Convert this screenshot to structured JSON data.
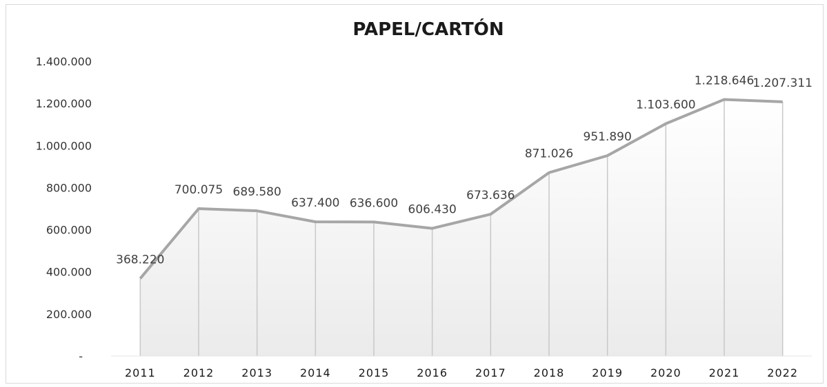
{
  "chart_data": {
    "type": "area",
    "title": "PAPEL/CARTÓN",
    "xlabel": "",
    "ylabel": "",
    "categories": [
      "2011",
      "2012",
      "2013",
      "2014",
      "2015",
      "2016",
      "2017",
      "2018",
      "2019",
      "2020",
      "2021",
      "2022"
    ],
    "values": [
      368220,
      700075,
      689580,
      637400,
      636600,
      606430,
      673636,
      871026,
      951890,
      1103600,
      1218646,
      1207311
    ],
    "data_labels": [
      "368.220",
      "700.075",
      "689.580",
      "637.400",
      "636.600",
      "606.430",
      "673.636",
      "871.026",
      "951.890",
      "1.103.600",
      "1.218.646",
      "1.207.311"
    ],
    "ylim": [
      0,
      1400000
    ],
    "yticks": [
      0,
      200000,
      400000,
      600000,
      800000,
      1000000,
      1200000,
      1400000
    ],
    "ytick_labels": [
      "-",
      "200.000",
      "400.000",
      "600.000",
      "800.000",
      "1.000.000",
      "1.200.000",
      "1.400.000"
    ],
    "grid": false,
    "legend": "none",
    "colors": {
      "line": "#a6a6a6",
      "drop_lines": "#c8c8c8",
      "fill_top": "#ffffff",
      "fill_bottom": "#ebebeb"
    }
  }
}
